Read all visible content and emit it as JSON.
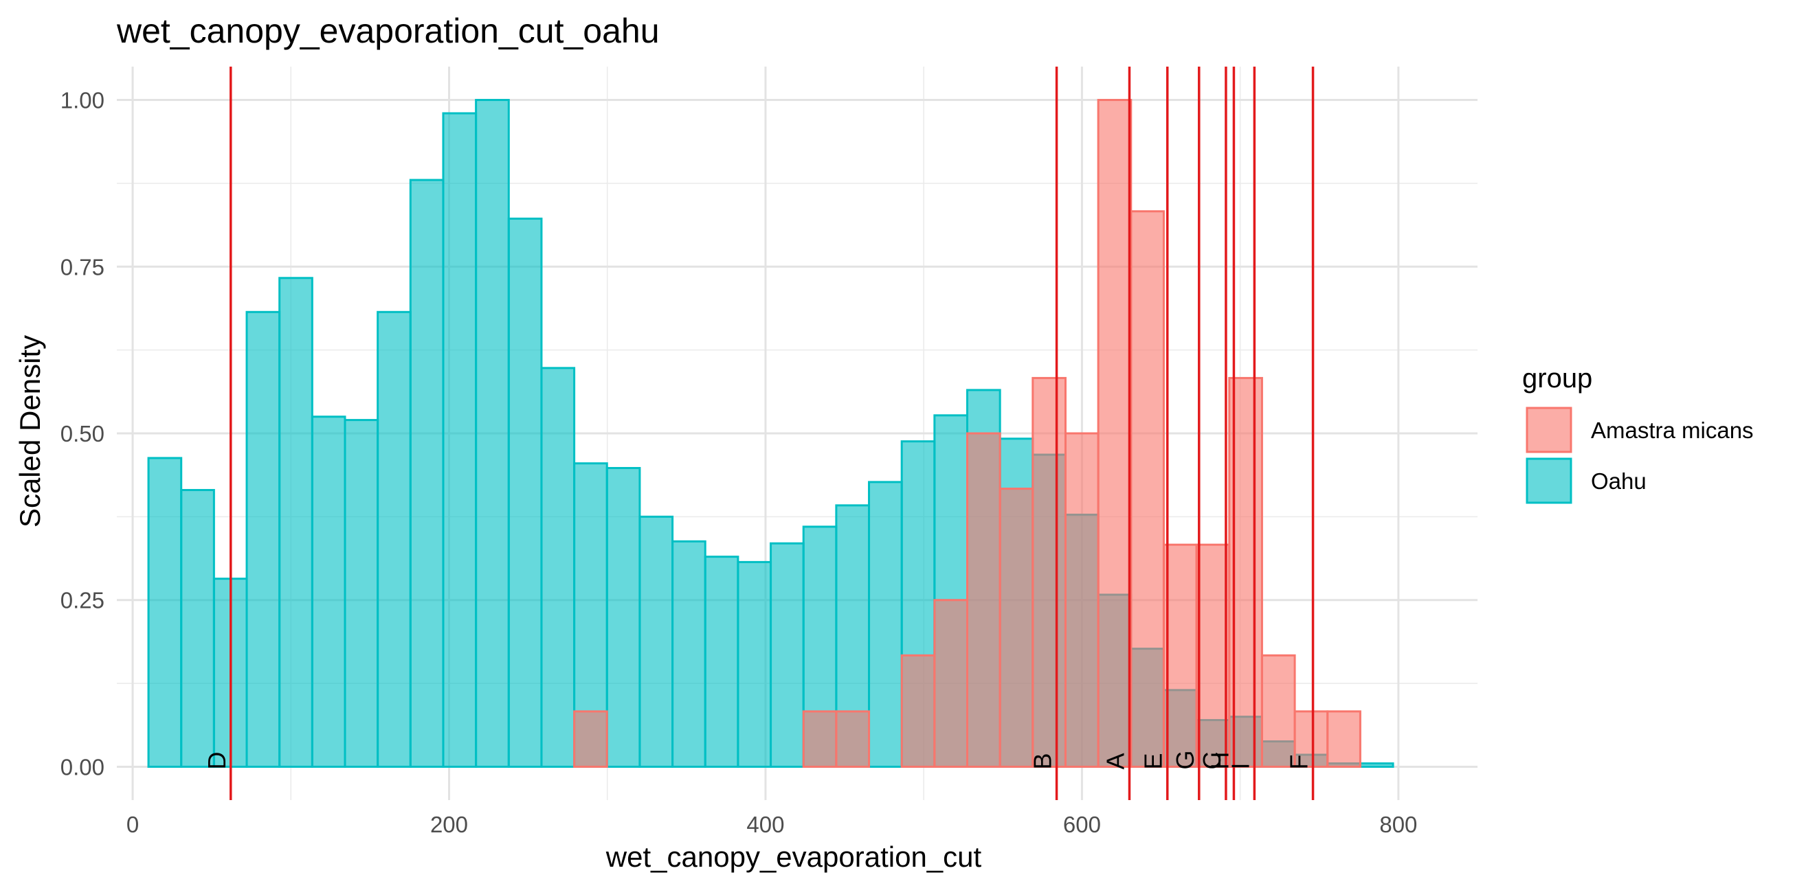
{
  "chart_data": {
    "type": "bar",
    "title": "wet_canopy_evaporation_cut_oahu",
    "xlabel": "wet_canopy_evaporation_cut",
    "ylabel": "Scaled Density",
    "xlim": [
      -10,
      850
    ],
    "ylim": [
      -0.05,
      1.05
    ],
    "x_ticks": [
      0,
      200,
      400,
      600,
      800
    ],
    "y_ticks": [
      0.0,
      0.25,
      0.5,
      0.75,
      1.0
    ],
    "x_tick_labels": [
      "0",
      "200",
      "400",
      "600",
      "800"
    ],
    "y_tick_labels": [
      "0.00",
      "0.25",
      "0.50",
      "0.75",
      "1.00"
    ],
    "grid": true,
    "bin_width": 20.7,
    "legend": {
      "title": "group",
      "placement": "right",
      "entries": [
        {
          "label": "Amastra micans",
          "fill": "#F8766D",
          "stroke": "#F8766D"
        },
        {
          "label": "Oahu",
          "fill": "#00BFC4",
          "stroke": "#00BFC4"
        }
      ]
    },
    "series": [
      {
        "name": "Oahu",
        "color": "#00BFC4",
        "bins": [
          {
            "x": 10,
            "y": 0.463
          },
          {
            "x": 30.7,
            "y": 0.415
          },
          {
            "x": 51.4,
            "y": 0.282
          },
          {
            "x": 72.1,
            "y": 0.682
          },
          {
            "x": 92.8,
            "y": 0.733
          },
          {
            "x": 113.5,
            "y": 0.525
          },
          {
            "x": 134.2,
            "y": 0.52
          },
          {
            "x": 154.9,
            "y": 0.682
          },
          {
            "x": 175.6,
            "y": 0.88
          },
          {
            "x": 196.3,
            "y": 0.98
          },
          {
            "x": 217.0,
            "y": 1.0
          },
          {
            "x": 237.7,
            "y": 0.822
          },
          {
            "x": 258.4,
            "y": 0.598
          },
          {
            "x": 279.1,
            "y": 0.455
          },
          {
            "x": 299.8,
            "y": 0.448
          },
          {
            "x": 320.5,
            "y": 0.375
          },
          {
            "x": 341.2,
            "y": 0.338
          },
          {
            "x": 361.9,
            "y": 0.315
          },
          {
            "x": 382.6,
            "y": 0.307
          },
          {
            "x": 403.3,
            "y": 0.335
          },
          {
            "x": 424.0,
            "y": 0.36
          },
          {
            "x": 444.7,
            "y": 0.392
          },
          {
            "x": 465.4,
            "y": 0.427
          },
          {
            "x": 486.1,
            "y": 0.488
          },
          {
            "x": 506.8,
            "y": 0.527
          },
          {
            "x": 527.5,
            "y": 0.565
          },
          {
            "x": 548.2,
            "y": 0.492
          },
          {
            "x": 568.9,
            "y": 0.468
          },
          {
            "x": 589.6,
            "y": 0.378
          },
          {
            "x": 610.3,
            "y": 0.258
          },
          {
            "x": 631.0,
            "y": 0.177
          },
          {
            "x": 651.7,
            "y": 0.115
          },
          {
            "x": 672.4,
            "y": 0.07
          },
          {
            "x": 693.1,
            "y": 0.075
          },
          {
            "x": 713.8,
            "y": 0.038
          },
          {
            "x": 734.5,
            "y": 0.018
          },
          {
            "x": 755.2,
            "y": 0.005
          },
          {
            "x": 775.9,
            "y": 0.005
          }
        ]
      },
      {
        "name": "Amastra micans",
        "color": "#F8766D",
        "bins": [
          {
            "x": 279.1,
            "y": 0.083
          },
          {
            "x": 424.0,
            "y": 0.083
          },
          {
            "x": 444.7,
            "y": 0.083
          },
          {
            "x": 486.1,
            "y": 0.167
          },
          {
            "x": 506.8,
            "y": 0.25
          },
          {
            "x": 527.5,
            "y": 0.5
          },
          {
            "x": 548.2,
            "y": 0.417
          },
          {
            "x": 568.9,
            "y": 0.583
          },
          {
            "x": 589.6,
            "y": 0.5
          },
          {
            "x": 610.3,
            "y": 1.0
          },
          {
            "x": 631.0,
            "y": 0.833
          },
          {
            "x": 651.7,
            "y": 0.333
          },
          {
            "x": 672.4,
            "y": 0.333
          },
          {
            "x": 693.1,
            "y": 0.583
          },
          {
            "x": 713.8,
            "y": 0.167
          },
          {
            "x": 734.5,
            "y": 0.083
          },
          {
            "x": 755.2,
            "y": 0.083
          }
        ]
      }
    ],
    "vlines": [
      {
        "label": "D",
        "x": 62
      },
      {
        "label": "B",
        "x": 584
      },
      {
        "label": "A",
        "x": 630
      },
      {
        "label": "E",
        "x": 654
      },
      {
        "label": "G",
        "x": 674
      },
      {
        "label": "C",
        "x": 691
      },
      {
        "label": "H",
        "x": 696
      },
      {
        "label": "I",
        "x": 709
      },
      {
        "label": "F",
        "x": 746
      }
    ],
    "vline_color": "#E31A1C"
  }
}
